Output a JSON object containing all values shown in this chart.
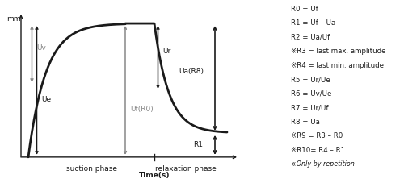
{
  "background_color": "#ffffff",
  "curve_color": "#1a1a1a",
  "arrow_color": "#1a1a1a",
  "gray_arrow_color": "#888888",
  "text_color": "#1a1a1a",
  "mm_label": "mm",
  "xlabel": "Time(s)",
  "suction_label": "suction phase",
  "relaxation_label": "relaxation phase",
  "r_params": [
    "R0 = Uf",
    "R1 = Uf – Ua",
    "R2 = Ua/Uf",
    "※R3 = last max. amplitude",
    "※R4 = last min. amplitude",
    "R5 = Ur/Ue",
    "R6 = Uv/Ue",
    "R7 = Ur/Uf",
    "R8 = Ua",
    "※R9 = R3 – R0",
    "※R10= R4 – R1",
    "※Only by repetition"
  ],
  "figsize": [
    5.0,
    2.27
  ],
  "dpi": 100
}
